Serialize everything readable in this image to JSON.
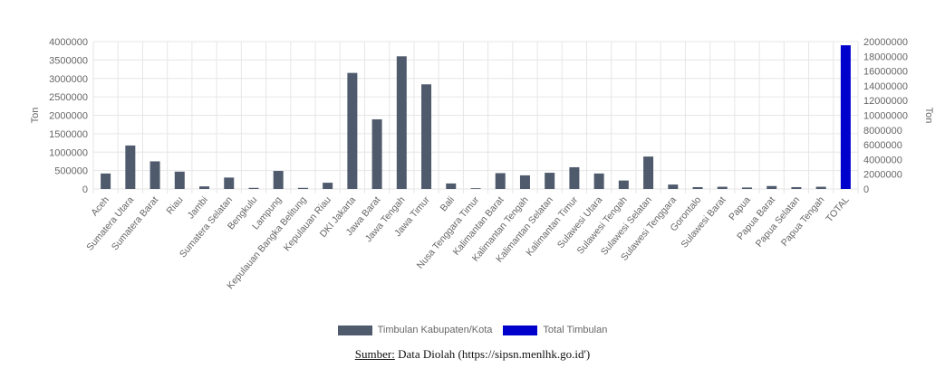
{
  "chart_data": {
    "type": "bar",
    "categories": [
      "Aceh",
      "Sumatera Utara",
      "Sumatera Barat",
      "Riau",
      "Jambi",
      "Sumatera Selatan",
      "Bengkulu",
      "Lampung",
      "Kepulauan Bangka Belitung",
      "Kepulauan Riau",
      "DKI Jakarta",
      "Jawa Barat",
      "Jawa Tengah",
      "Jawa Timur",
      "Bali",
      "Nusa Tenggara Timur",
      "Kalimantan Barat",
      "Kalimantan Tengah",
      "Kalimantan Selatan",
      "Kalimantan Timur",
      "Sulawesi Utara",
      "Sulawesi Tengah",
      "Sulawesi Selatan",
      "Sulawesi Tenggara",
      "Gorontalo",
      "Sulawesi Barat",
      "Papua",
      "Papua Barat",
      "Papua Selatan",
      "Papua Tengah",
      "TOTAL"
    ],
    "series": [
      {
        "name": "Timbulan Kabupaten/Kota",
        "color": "#4f5b6d",
        "axis": "left",
        "values": [
          420000,
          1180000,
          750000,
          470000,
          70000,
          310000,
          30000,
          490000,
          30000,
          170000,
          3150000,
          1890000,
          3600000,
          2840000,
          150000,
          20000,
          430000,
          370000,
          440000,
          590000,
          420000,
          230000,
          880000,
          120000,
          50000,
          60000,
          40000,
          80000,
          50000,
          60000,
          null
        ]
      },
      {
        "name": "Total Timbulan",
        "color": "#0000cc",
        "axis": "right",
        "values": [
          null,
          null,
          null,
          null,
          null,
          null,
          null,
          null,
          null,
          null,
          null,
          null,
          null,
          null,
          null,
          null,
          null,
          null,
          null,
          null,
          null,
          null,
          null,
          null,
          null,
          null,
          null,
          null,
          null,
          null,
          19500000
        ]
      }
    ],
    "ylabel": "Ton",
    "y2label": "Ton",
    "ylim": [
      0,
      4000000
    ],
    "y2lim": [
      0,
      20000000
    ],
    "yticks": [
      0,
      500000,
      1000000,
      1500000,
      2000000,
      2500000,
      3000000,
      3500000,
      4000000
    ],
    "y2ticks": [
      0,
      2000000,
      4000000,
      6000000,
      8000000,
      10000000,
      12000000,
      14000000,
      16000000,
      18000000,
      20000000
    ],
    "grid": true,
    "legend": "bottom-center"
  },
  "source": {
    "label": "Sumber:",
    "text": "Data Diolah (https://sipsn.menlhk.go.id')"
  }
}
